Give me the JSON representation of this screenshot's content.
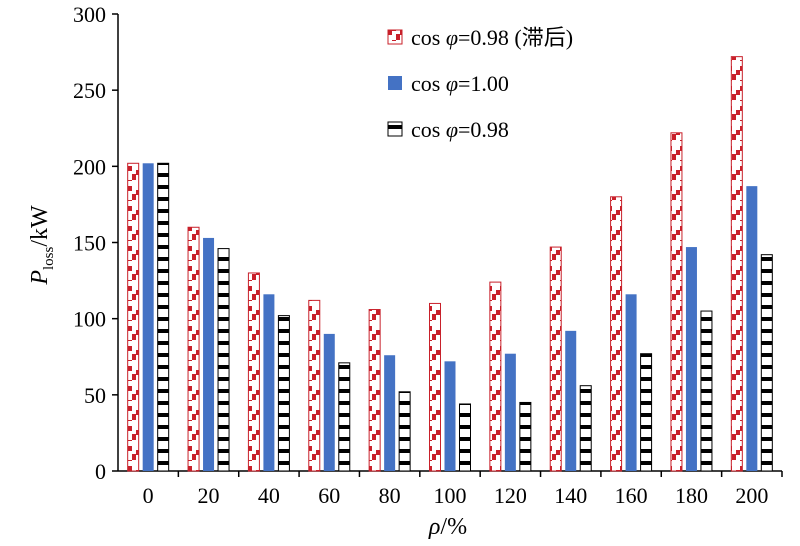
{
  "chart_data": {
    "type": "bar",
    "categories": [
      "0",
      "20",
      "40",
      "60",
      "80",
      "100",
      "120",
      "140",
      "160",
      "180",
      "200"
    ],
    "series": [
      {
        "name": "cos φ=0.98 (滞后)",
        "values": [
          202,
          160,
          130,
          112,
          106,
          110,
          124,
          147,
          180,
          222,
          272
        ],
        "color": "#c8202a",
        "pattern": "red-diagonal-steps"
      },
      {
        "name": "cos φ=1.00",
        "values": [
          202,
          153,
          116,
          90,
          76,
          72,
          77,
          92,
          116,
          147,
          187
        ],
        "color": "#4472c4",
        "pattern": "solid"
      },
      {
        "name": "cos φ=0.98",
        "values": [
          202,
          146,
          102,
          71,
          52,
          44,
          45,
          56,
          77,
          105,
          142
        ],
        "color": "#000000",
        "pattern": "horizontal-stripes"
      }
    ],
    "ylim": [
      0,
      300
    ],
    "yticks": [
      "0",
      "50",
      "100",
      "150",
      "200",
      "250",
      "300"
    ],
    "xlabel": {
      "base": "ρ",
      "suffix": "/%"
    },
    "ylabel": {
      "base": "P",
      "sub": "loss",
      "suffix": "/kW"
    },
    "legend": {
      "placement": "top-right",
      "items": [
        {
          "prefix": "cos ",
          "phi": "φ",
          "suffix": "=0.98 (滞后)"
        },
        {
          "prefix": "cos ",
          "phi": "φ",
          "suffix": "=1.00"
        },
        {
          "prefix": "cos ",
          "phi": "φ",
          "suffix": "=0.98"
        }
      ]
    },
    "grid": false
  }
}
